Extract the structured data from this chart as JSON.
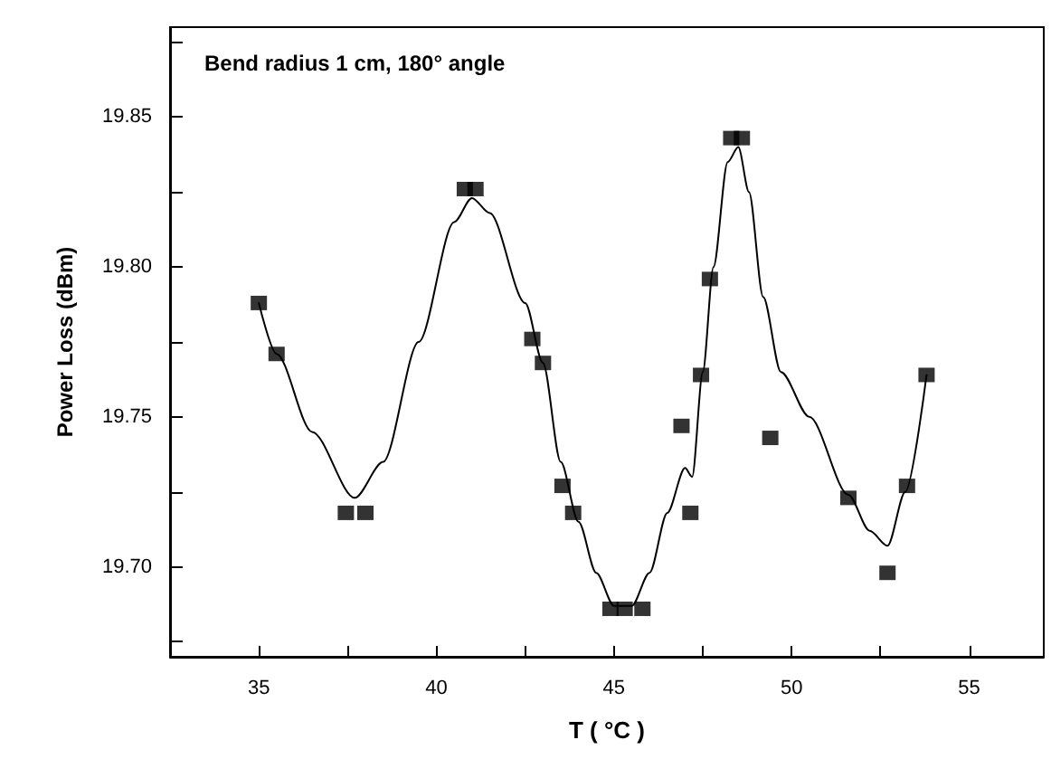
{
  "chart_data": {
    "type": "scatter",
    "title": "Bend radius 1 cm, 180° angle",
    "xlabel": "T ( °C )",
    "ylabel": "Power Loss (dBm)",
    "xlim": [
      32.5,
      57.1
    ],
    "ylim": [
      19.67,
      19.88
    ],
    "xticks": [
      35,
      {
        "value": 37.5,
        "label": null
      },
      40,
      {
        "value": 42.5,
        "label": null
      },
      45,
      {
        "value": 47.5,
        "label": null
      },
      50,
      {
        "value": 52.5,
        "label": null
      },
      55
    ],
    "yticks": [
      {
        "value": 19.675,
        "label": null
      },
      {
        "value": 19.7,
        "label": "19.70"
      },
      {
        "value": 19.725,
        "label": null
      },
      19.75,
      {
        "value": 19.775,
        "label": null
      },
      {
        "value": 19.8,
        "label": "19.80"
      },
      {
        "value": 19.825,
        "label": null
      },
      19.85,
      {
        "value": 19.875,
        "label": null
      }
    ],
    "grid": false,
    "marker": "square",
    "series": [
      {
        "color": "#000000",
        "x": [
          35.0,
          35.5,
          37.45,
          38.0,
          40.8,
          41.1,
          42.7,
          43.0,
          43.55,
          43.85,
          44.9,
          45.3,
          45.8,
          46.9,
          47.15,
          47.45,
          47.7,
          48.3,
          48.6,
          49.4,
          51.6,
          52.7,
          53.25,
          53.8
        ],
        "values": [
          19.788,
          19.771,
          19.718,
          19.718,
          19.826,
          19.826,
          19.776,
          19.768,
          19.727,
          19.718,
          19.686,
          19.686,
          19.686,
          19.747,
          19.718,
          19.764,
          19.796,
          19.843,
          19.843,
          19.743,
          19.723,
          19.698,
          19.727,
          19.764
        ]
      },
      {
        "type": "line",
        "color": "#000000",
        "marker": "none",
        "line_style": "solid",
        "x": [
          35,
          35.5,
          36.5,
          37.7,
          38.5,
          39.5,
          40.5,
          41,
          41.5,
          42.5,
          43,
          43.5,
          44,
          44.5,
          45,
          45.5,
          46,
          46.5,
          47,
          47.2,
          47.5,
          47.8,
          48.2,
          48.5,
          48.8,
          49.2,
          49.7,
          50.5,
          51.6,
          52.2,
          52.7,
          53.2,
          53.8
        ],
        "values": [
          19.788,
          19.771,
          19.745,
          19.723,
          19.735,
          19.775,
          19.815,
          19.823,
          19.818,
          19.788,
          19.768,
          19.735,
          19.715,
          19.698,
          19.687,
          19.687,
          19.698,
          19.718,
          19.733,
          19.73,
          19.765,
          19.8,
          19.835,
          19.84,
          19.825,
          19.79,
          19.765,
          19.75,
          19.724,
          19.712,
          19.707,
          19.725,
          19.764
        ]
      }
    ]
  }
}
